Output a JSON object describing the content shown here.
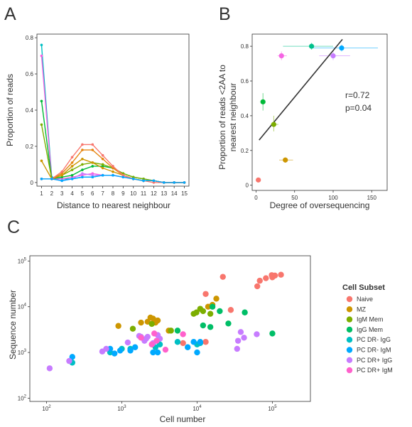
{
  "panels": {
    "a": "A",
    "b": "B",
    "c": "C"
  },
  "chart_data": [
    {
      "type": "line",
      "panel": "A",
      "xlabel": "Distance to nearest neighbour",
      "ylabel": "Proportion of reads",
      "xlim": [
        1,
        15
      ],
      "ylim": [
        0,
        0.8
      ],
      "x": [
        1,
        2,
        3,
        4,
        5,
        6,
        7,
        8,
        9,
        10,
        11,
        12,
        13,
        14,
        15
      ],
      "xticks": [
        1,
        2,
        3,
        4,
        5,
        6,
        7,
        8,
        9,
        10,
        11,
        12,
        13,
        14,
        15
      ],
      "yticks": [
        0.0,
        0.2,
        0.4,
        0.6,
        0.8
      ],
      "grid": false,
      "series": [
        {
          "color": "#00BFC4",
          "values": [
            0.76,
            0.03,
            0.02,
            0.02,
            0.03,
            0.03,
            0.04,
            0.04,
            0.03,
            0.02,
            0.01,
            0.01,
            0.0,
            0.0,
            0.0
          ]
        },
        {
          "color": "#F564E3",
          "values": [
            0.7,
            0.02,
            0.02,
            0.03,
            0.04,
            0.05,
            0.04,
            0.04,
            0.03,
            0.02,
            0.01,
            0.01,
            0.0,
            0.0,
            0.0
          ]
        },
        {
          "color": "#00BA38",
          "values": [
            0.45,
            0.02,
            0.03,
            0.04,
            0.07,
            0.09,
            0.09,
            0.08,
            0.05,
            0.03,
            0.02,
            0.01,
            0.0,
            0.0,
            0.0
          ]
        },
        {
          "color": "#7CAE00",
          "values": [
            0.32,
            0.02,
            0.04,
            0.07,
            0.1,
            0.11,
            0.1,
            0.08,
            0.05,
            0.03,
            0.02,
            0.01,
            0.0,
            0.0,
            0.0
          ]
        },
        {
          "color": "#C77CFF",
          "values": [
            0.02,
            0.02,
            0.01,
            0.02,
            0.05,
            0.04,
            0.04,
            0.04,
            0.03,
            0.02,
            0.01,
            0.01,
            0.0,
            0.0,
            0.0
          ]
        },
        {
          "color": "#CD9600",
          "values": [
            0.12,
            0.02,
            0.04,
            0.09,
            0.13,
            0.11,
            0.08,
            0.06,
            0.04,
            0.02,
            0.01,
            0.01,
            0.0,
            0.0,
            0.0
          ]
        },
        {
          "color": "#E68613",
          "values": [
            0.02,
            0.02,
            0.05,
            0.11,
            0.18,
            0.18,
            0.13,
            0.08,
            0.04,
            0.02,
            0.01,
            0.01,
            0.0,
            0.0,
            0.0
          ]
        },
        {
          "color": "#F8766D",
          "values": [
            0.02,
            0.02,
            0.06,
            0.14,
            0.21,
            0.21,
            0.15,
            0.09,
            0.04,
            0.02,
            0.01,
            0.0,
            0.0,
            0.0,
            0.0
          ]
        },
        {
          "color": "#00A9FF",
          "values": [
            0.02,
            0.02,
            0.01,
            0.02,
            0.03,
            0.03,
            0.04,
            0.04,
            0.03,
            0.02,
            0.01,
            0.01,
            0.0,
            0.0,
            0.0
          ]
        }
      ]
    },
    {
      "type": "scatter",
      "panel": "B",
      "xlabel": "Degree of oversequencing",
      "ylabel": "Proportion of reads <2AA to nearest neighbour",
      "ylabel_lines": [
        "Proportion of reads <2AA to",
        "nearest neighbour"
      ],
      "xlim": [
        -5,
        170
      ],
      "ylim": [
        0,
        0.85
      ],
      "xticks": [
        0,
        50,
        100,
        150
      ],
      "yticks": [
        0.0,
        0.2,
        0.4,
        0.6,
        0.8
      ],
      "grid": false,
      "annotations": [
        "r=0.72",
        "p=0.04"
      ],
      "regression": {
        "x": [
          4,
          112
        ],
        "y": [
          0.26,
          0.84
        ],
        "color": "#333333"
      },
      "points": [
        {
          "x": 3,
          "y": 0.03,
          "color": "#F8766D"
        },
        {
          "x": 38,
          "y": 0.145,
          "color": "#CD9600",
          "xerr": [
            30,
            48
          ],
          "yerr": [
            0.13,
            0.16
          ]
        },
        {
          "x": 23,
          "y": 0.35,
          "color": "#7CAE00",
          "xerr": [
            19,
            29
          ],
          "yerr": [
            0.31,
            0.4
          ]
        },
        {
          "x": 9,
          "y": 0.48,
          "color": "#00BA38",
          "yerr": [
            0.43,
            0.53
          ]
        },
        {
          "x": 72,
          "y": 0.8,
          "color": "#00C08B",
          "xerr": [
            35,
            100
          ],
          "yerr": [
            0.78,
            0.82
          ]
        },
        {
          "x": 111,
          "y": 0.79,
          "color": "#00A9FF",
          "xerr": [
            72,
            158
          ],
          "yerr": [
            0.77,
            0.81
          ]
        },
        {
          "x": 100,
          "y": 0.745,
          "color": "#C77CFF",
          "xerr": [
            82,
            122
          ],
          "yerr": [
            0.72,
            0.77
          ]
        },
        {
          "x": 33,
          "y": 0.745,
          "color": "#F564E3",
          "xerr": [
            28,
            40
          ],
          "yerr": [
            0.72,
            0.77
          ]
        }
      ]
    },
    {
      "type": "scatter",
      "panel": "C",
      "xlabel": "Cell number",
      "ylabel": "Sequence number",
      "xscale": "log",
      "yscale": "log",
      "xlim": [
        60,
        320000
      ],
      "ylim": [
        85,
        130000
      ],
      "xticks": [
        {
          "value": 100,
          "base": "10",
          "exp": "2"
        },
        {
          "value": 1000,
          "base": "10",
          "exp": "3"
        },
        {
          "value": 10000,
          "base": "10",
          "exp": "4"
        },
        {
          "value": 100000,
          "base": "10",
          "exp": "5"
        }
      ],
      "yticks": [
        {
          "value": 100,
          "base": "10",
          "exp": "2"
        },
        {
          "value": 1000,
          "base": "10",
          "exp": "3"
        },
        {
          "value": 10000,
          "base": "10",
          "exp": "4"
        },
        {
          "value": 100000,
          "base": "10",
          "exp": "5"
        }
      ],
      "grid": false,
      "legend": {
        "title": "Cell Subset",
        "placement": "right",
        "entries": [
          {
            "label": "Naive",
            "color": "#F8766D"
          },
          {
            "label": "MZ",
            "color": "#CD9600"
          },
          {
            "label": "IgM Mem",
            "color": "#7CAE00"
          },
          {
            "label": "IgG Mem",
            "color": "#00BE67"
          },
          {
            "label": "PC DR- IgG",
            "color": "#00BFC4"
          },
          {
            "label": "PC DR- IgM",
            "color": "#00A9FF"
          },
          {
            "label": "PC DR+ IgG",
            "color": "#C77CFF"
          },
          {
            "label": "PC DR+ IgM",
            "color": "#FF61CC"
          }
        ]
      },
      "series": [
        {
          "name": "Naive",
          "color": "#F8766D",
          "points": [
            [
              22000,
              45000
            ],
            [
              13000,
              19000
            ],
            [
              28000,
              8500
            ],
            [
              63000,
              28000
            ],
            [
              68000,
              37000
            ],
            [
              82000,
              42000
            ],
            [
              98000,
              49000
            ],
            [
              100000,
              44000
            ],
            [
              108000,
              48000
            ],
            [
              130000,
              50000
            ],
            [
              6500,
              1600
            ],
            [
              13000,
              1700
            ]
          ]
        },
        {
          "name": "MZ",
          "color": "#CD9600",
          "points": [
            [
              900,
              3800
            ],
            [
              1800,
              4500
            ],
            [
              2200,
              4700
            ],
            [
              2400,
              5800
            ],
            [
              2600,
              5500
            ],
            [
              2800,
              4500
            ],
            [
              3000,
              5000
            ],
            [
              4200,
              3000
            ],
            [
              14000,
              10000
            ],
            [
              16000,
              11000
            ],
            [
              18000,
              15000
            ]
          ]
        },
        {
          "name": "IgM Mem",
          "color": "#7CAE00",
          "points": [
            [
              1400,
              3300
            ],
            [
              2500,
              4200
            ],
            [
              4500,
              3000
            ],
            [
              9000,
              7000
            ],
            [
              9800,
              7500
            ],
            [
              11000,
              9000
            ],
            [
              12000,
              8000
            ],
            [
              15000,
              7000
            ]
          ]
        },
        {
          "name": "IgG Mem",
          "color": "#00BE67",
          "points": [
            [
              5500,
              3000
            ],
            [
              12000,
              3900
            ],
            [
              15000,
              3600
            ],
            [
              16000,
              10000
            ],
            [
              20000,
              8000
            ],
            [
              26000,
              4300
            ],
            [
              43000,
              7500
            ],
            [
              100000,
              2600
            ]
          ]
        },
        {
          "name": "PC DR- IgG",
          "color": "#00BFC4",
          "points": [
            [
              220,
              600
            ],
            [
              700,
              1000
            ],
            [
              1000,
              1200
            ],
            [
              1300,
              1200
            ],
            [
              2800,
              1300
            ],
            [
              3200,
              1500
            ],
            [
              5500,
              1700
            ],
            [
              10000,
              1500
            ],
            [
              11000,
              1600
            ]
          ]
        },
        {
          "name": "PC DR- IgM",
          "color": "#00A9FF",
          "points": [
            [
              220,
              800
            ],
            [
              700,
              1200
            ],
            [
              800,
              950
            ],
            [
              950,
              1100
            ],
            [
              1300,
              1100
            ],
            [
              1500,
              1300
            ],
            [
              2600,
              1000
            ],
            [
              3000,
              1000
            ],
            [
              7500,
              1300
            ],
            [
              9000,
              1700
            ],
            [
              10000,
              1000
            ],
            [
              11000,
              1700
            ]
          ]
        },
        {
          "name": "PC DR+ IgG",
          "color": "#C77CFF",
          "points": [
            [
              110,
              450
            ],
            [
              200,
              650
            ],
            [
              550,
              1050
            ],
            [
              620,
              1200
            ],
            [
              1200,
              1650
            ],
            [
              1700,
              2300
            ],
            [
              1800,
              2200
            ],
            [
              2000,
              1800
            ],
            [
              2100,
              2000
            ],
            [
              2200,
              2200
            ],
            [
              2600,
              1600
            ],
            [
              3000,
              2400
            ],
            [
              3200,
              2000
            ],
            [
              35000,
              1800
            ],
            [
              42000,
              2100
            ],
            [
              62000,
              2500
            ],
            [
              38000,
              2800
            ],
            [
              34000,
              1200
            ]
          ]
        },
        {
          "name": "PC DR+ IgM",
          "color": "#FF61CC",
          "points": [
            [
              1800,
              2100
            ],
            [
              2500,
              1500
            ],
            [
              2700,
              2600
            ],
            [
              2900,
              1800
            ],
            [
              3800,
              1150
            ],
            [
              6500,
              2500
            ]
          ]
        }
      ]
    }
  ]
}
